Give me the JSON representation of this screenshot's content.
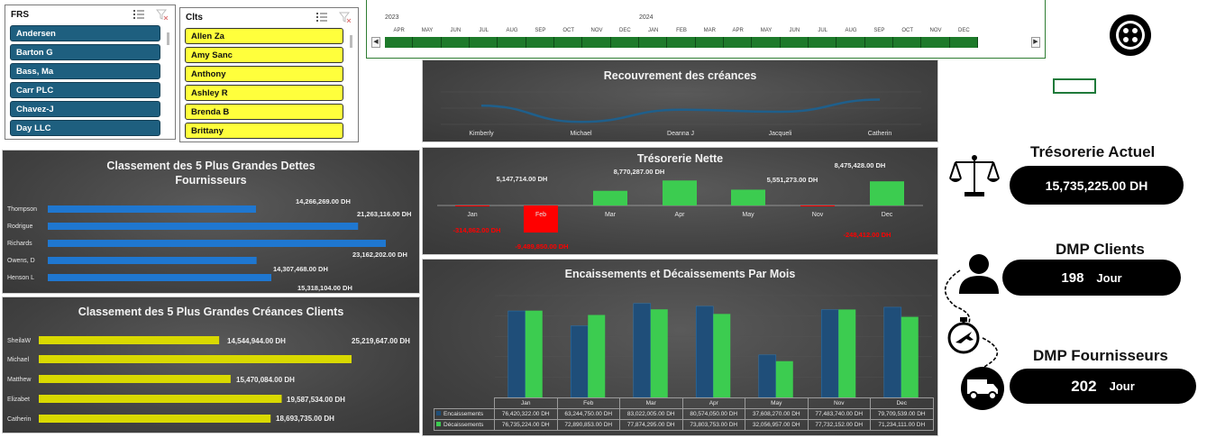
{
  "slicers": {
    "frs": {
      "title": "FRS",
      "items": [
        "Andersen",
        "Barton G",
        "Bass, Ma",
        "Carr PLC",
        "Chavez-J",
        "Day LLC"
      ]
    },
    "clts": {
      "title": "Clts",
      "items": [
        "Allen Za",
        "Amy Sanc",
        "Anthony",
        "Ashley R",
        "Brenda B",
        "Brittany"
      ]
    }
  },
  "timeline": {
    "years": [
      "2023",
      "2024"
    ],
    "months": [
      "APR",
      "MAY",
      "JUN",
      "JUL",
      "AUG",
      "SEP",
      "OCT",
      "NOV",
      "DEC",
      "JAN",
      "FEB",
      "MAR",
      "APR",
      "MAY",
      "JUN",
      "JUL",
      "AUG",
      "SEP",
      "OCT",
      "NOV",
      "DEC"
    ]
  },
  "kpis": {
    "tresorerie": {
      "title": "Trésorerie Actuel",
      "value": "15,735,225.00 DH"
    },
    "dmp_clients": {
      "title": "DMP Clients",
      "value": "198",
      "unit": "Jour"
    },
    "dmp_fournisseurs": {
      "title": "DMP Fournisseurs",
      "value": "202",
      "unit": "Jour"
    }
  },
  "icons": {
    "top_button": "sliders-circle-icon",
    "treso": "balance-scale-icon",
    "clients": "person-icon",
    "stopwatch": "stopwatch-plane-icon",
    "truck": "delivery-truck-icon"
  },
  "colors": {
    "blue_bar": "#1f77d0",
    "yellow_bar": "#d9d900",
    "green": "#3ccc50",
    "red": "#ff0000",
    "navy": "#1f4e79"
  },
  "chart_data": [
    {
      "id": "recouvrement",
      "type": "line",
      "title": "Recouvrement des créances",
      "categories": [
        "Kimberly",
        "Michael",
        "Deanna J",
        "Jacqueli",
        "Catherin"
      ],
      "values": [
        0.55,
        0.15,
        0.45,
        0.4,
        0.7
      ]
    },
    {
      "id": "tresorerie_nette",
      "type": "bar",
      "title": "Trésorerie Nette",
      "categories": [
        "Jan",
        "Feb",
        "Mar",
        "Apr",
        "May",
        "Nov",
        "Dec"
      ],
      "values": [
        -314862,
        -9489850,
        5147714,
        8770287,
        5551273,
        -248412,
        8475428
      ],
      "labels": [
        "-314,862.00 DH",
        "-9,489,850.00 DH",
        "5,147,714.00 DH",
        "8,770,287.00 DH",
        "5,551,273.00 DH",
        "-248,412.00 DH",
        "8,475,428.00 DH"
      ]
    },
    {
      "id": "dettes_fournisseurs",
      "type": "bar",
      "title": "Classement des 5 Plus Grandes Dettes Fournisseurs",
      "categories": [
        "Thompson",
        "Rodrigue",
        "Richards",
        "Owens, D",
        "Henson L"
      ],
      "values": [
        14266269,
        21263116,
        23162202,
        14307468,
        15318104
      ],
      "labels": [
        "14,266,269.00 DH",
        "21,263,116.00 DH",
        "23,162,202.00 DH",
        "14,307,468.00 DH",
        "15,318,104.00 DH"
      ]
    },
    {
      "id": "creances_clients",
      "type": "bar",
      "title": "Classement des 5 Plus Grandes Créances Clients",
      "categories": [
        "SheilaW",
        "Michael",
        "Matthew",
        "Elizabet",
        "Catherin"
      ],
      "values": [
        14544944,
        25219647,
        15470084,
        19587534,
        18693735
      ],
      "labels": [
        "14,544,944.00 DH",
        "25,219,647.00 DH",
        "15,470,084.00 DH",
        "19,587,534.00 DH",
        "18,693,735.00 DH"
      ]
    },
    {
      "id": "encaissements",
      "type": "bar",
      "title": "Encaissements et Décaissements Par Mois",
      "categories": [
        "Jan",
        "Feb",
        "Mar",
        "Apr",
        "May",
        "Nov",
        "Dec"
      ],
      "series": [
        {
          "name": "Encaissements",
          "values": [
            76420322,
            63244750,
            83022005,
            80574050,
            37608270,
            77483740,
            79709539
          ],
          "labels": [
            "76,420,322.00 DH",
            "63,244,750.00 DH",
            "83,022,005.00 DH",
            "80,574,050.00 DH",
            "37,608,270.00 DH",
            "77,483,740.00 DH",
            "79,709,539.00 DH"
          ]
        },
        {
          "name": "Décaissements",
          "values": [
            76735224,
            72890853,
            77874295,
            73803753,
            32056957,
            77732152,
            71234111
          ],
          "labels": [
            "76,735,224.00 DH",
            "72,890,853.00 DH",
            "77,874,295.00 DH",
            "73,803,753.00 DH",
            "32,056,957.00 DH",
            "77,732,152.00 DH",
            "71,234,111.00 DH"
          ]
        }
      ]
    }
  ]
}
